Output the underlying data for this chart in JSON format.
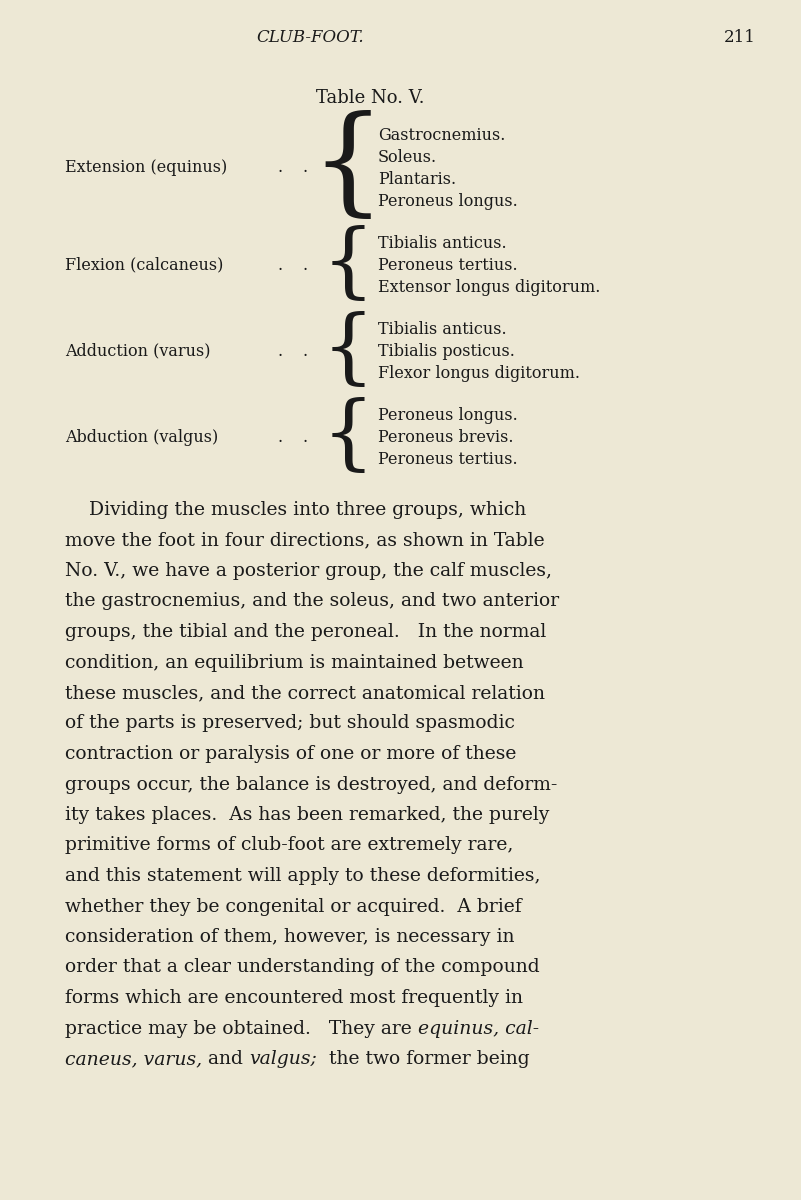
{
  "background_color": "#ede8d5",
  "text_color": "#1a1a1a",
  "header_italic": "CLUB-FOOT.",
  "header_page": "211",
  "table_title": "Table No. V.",
  "table_entries": [
    {
      "label": "Extension (equinus)",
      "muscles": [
        "Gastrocnemius.",
        "Soleus.",
        "Plantaris.",
        "Peroneus longus."
      ]
    },
    {
      "label": "Flexion (calcaneus)",
      "muscles": [
        "Tibialis anticus.",
        "Peroneus tertius.",
        "Extensor longus digitorum."
      ]
    },
    {
      "label": "Adduction (varus)",
      "muscles": [
        "Tibialis anticus.",
        "Tibialis posticus.",
        "Flexor longus digitorum."
      ]
    },
    {
      "label": "Abduction (valgus)",
      "muscles": [
        "Peroneus longus.",
        "Peroneus brevis.",
        "Peroneus tertius."
      ]
    }
  ],
  "body_lines": [
    [
      {
        "text": "    Dividing the muscles into three groups, which",
        "italic": false
      }
    ],
    [
      {
        "text": "move the foot in four directions, as shown in Table",
        "italic": false
      }
    ],
    [
      {
        "text": "No. V., we have a posterior group, the calf muscles,",
        "italic": false
      }
    ],
    [
      {
        "text": "the gastrocnemius, and the soleus, and two anterior",
        "italic": false
      }
    ],
    [
      {
        "text": "groups, the tibial and the peroneal.   In the normal",
        "italic": false
      }
    ],
    [
      {
        "text": "condition, an equilibrium is maintained between",
        "italic": false
      }
    ],
    [
      {
        "text": "these muscles, and the correct anatomical relation",
        "italic": false
      }
    ],
    [
      {
        "text": "of the parts is preserved; but should spasmodic",
        "italic": false
      }
    ],
    [
      {
        "text": "contraction or paralysis of one or more of these",
        "italic": false
      }
    ],
    [
      {
        "text": "groups occur, the balance is destroyed, and deform-",
        "italic": false
      }
    ],
    [
      {
        "text": "ity takes places.  As has been remarked, the purely",
        "italic": false
      }
    ],
    [
      {
        "text": "primitive forms of club-foot are extremely rare,",
        "italic": false
      }
    ],
    [
      {
        "text": "and this statement will apply to these deformities,",
        "italic": false
      }
    ],
    [
      {
        "text": "whether they be congenital or acquired.  A brief",
        "italic": false
      }
    ],
    [
      {
        "text": "consideration of them, however, is necessary in",
        "italic": false
      }
    ],
    [
      {
        "text": "order that a clear understanding of the compound",
        "italic": false
      }
    ],
    [
      {
        "text": "forms which are encountered most frequently in",
        "italic": false
      }
    ],
    [
      {
        "text": "practice may be obtained.   They are ",
        "italic": false
      },
      {
        "text": "equinus, cal-",
        "italic": true
      }
    ],
    [
      {
        "text": "caneus, varus,",
        "italic": true
      },
      {
        "text": " and ",
        "italic": false
      },
      {
        "text": "valgus;",
        "italic": true
      },
      {
        "text": "  the two former being",
        "italic": false
      }
    ]
  ]
}
